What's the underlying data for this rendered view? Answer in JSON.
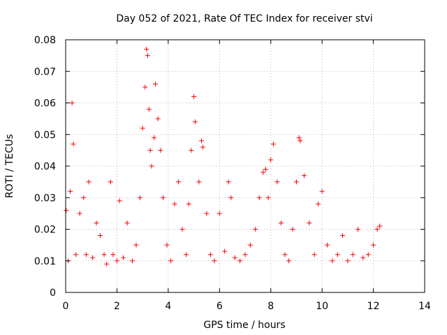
{
  "chart_data": {
    "type": "scatter",
    "title": "Day 052 of 2021, Rate Of TEC Index for receiver stvi",
    "xlabel": "GPS time / hours",
    "ylabel": "ROTI / TECUs",
    "xlim": [
      0,
      14
    ],
    "ylim": [
      0,
      0.08
    ],
    "x_ticks": [
      0,
      2,
      4,
      6,
      8,
      10,
      12,
      14
    ],
    "x_tick_labels": [
      "0",
      "2",
      "4",
      "6",
      "8",
      "10",
      "12",
      "14"
    ],
    "y_ticks": [
      0,
      0.01,
      0.02,
      0.03,
      0.04,
      0.05,
      0.06,
      0.07,
      0.08
    ],
    "y_tick_labels": [
      "0",
      "0.01",
      "0.02",
      "0.03",
      "0.04",
      "0.05",
      "0.06",
      "0.07",
      "0.08"
    ],
    "grid": true,
    "legend": "none",
    "marker": "+",
    "color": "#ff0000",
    "series": [
      {
        "x": [
          0.02,
          0.1,
          0.18,
          0.25,
          0.3,
          0.4,
          0.55,
          0.7,
          0.8,
          0.9,
          1.05,
          1.2,
          1.35,
          1.5,
          1.6,
          1.75,
          1.85,
          2.0,
          2.1,
          2.25,
          2.4,
          2.6,
          2.75,
          2.9,
          3.0,
          3.1,
          3.15,
          3.2,
          3.25,
          3.3,
          3.35,
          3.45,
          3.5,
          3.6,
          3.7,
          3.8,
          3.95,
          4.1,
          4.25,
          4.4,
          4.55,
          4.7,
          4.8,
          4.9,
          5.0,
          5.05,
          5.2,
          5.3,
          5.35,
          5.5,
          5.65,
          5.8,
          6.0,
          6.2,
          6.35,
          6.45,
          6.6,
          6.8,
          7.0,
          7.2,
          7.4,
          7.55,
          7.7,
          7.8,
          7.9,
          8.0,
          8.1,
          8.25,
          8.4,
          8.55,
          8.7,
          8.85,
          9.0,
          9.1,
          9.15,
          9.3,
          9.5,
          9.7,
          9.85,
          10.0,
          10.2,
          10.4,
          10.6,
          10.8,
          11.0,
          11.2,
          11.4,
          11.6,
          11.8,
          12.0,
          12.15,
          12.25
        ],
        "y": [
          0.026,
          0.01,
          0.032,
          0.06,
          0.047,
          0.012,
          0.025,
          0.03,
          0.012,
          0.035,
          0.011,
          0.022,
          0.018,
          0.012,
          0.009,
          0.035,
          0.012,
          0.01,
          0.029,
          0.011,
          0.022,
          0.01,
          0.015,
          0.03,
          0.052,
          0.065,
          0.077,
          0.075,
          0.058,
          0.045,
          0.04,
          0.049,
          0.066,
          0.055,
          0.045,
          0.03,
          0.015,
          0.01,
          0.028,
          0.035,
          0.02,
          0.012,
          0.028,
          0.045,
          0.062,
          0.054,
          0.035,
          0.048,
          0.046,
          0.025,
          0.012,
          0.01,
          0.025,
          0.013,
          0.035,
          0.03,
          0.011,
          0.01,
          0.012,
          0.015,
          0.02,
          0.03,
          0.038,
          0.039,
          0.03,
          0.042,
          0.047,
          0.035,
          0.022,
          0.012,
          0.01,
          0.02,
          0.035,
          0.049,
          0.048,
          0.037,
          0.022,
          0.012,
          0.028,
          0.032,
          0.015,
          0.01,
          0.012,
          0.018,
          0.01,
          0.012,
          0.02,
          0.011,
          0.012,
          0.015,
          0.02,
          0.021
        ]
      }
    ]
  }
}
